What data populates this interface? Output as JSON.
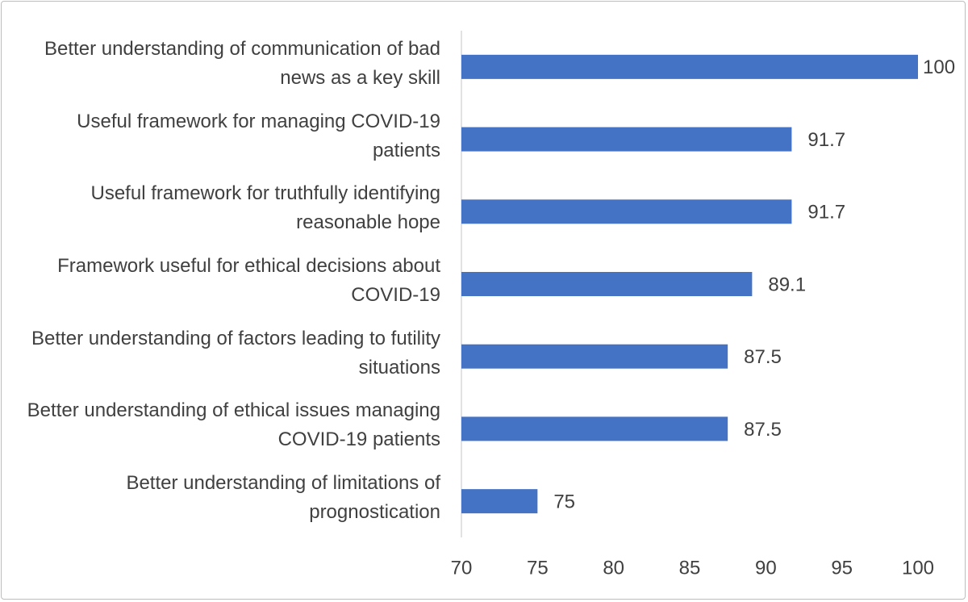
{
  "chart_data": {
    "type": "bar",
    "orientation": "horizontal",
    "categories": [
      "Better understanding of communication of bad news as a key skill",
      "Useful framework for managing COVID-19 patients",
      "Useful framework for truthfully identifying reasonable hope",
      "Framework useful for ethical decisions about COVID-19",
      "Better understanding of factors leading to futility situations",
      "Better understanding of ethical issues managing COVID-19 patients",
      "Better understanding of limitations of prognostication"
    ],
    "values": [
      100,
      91.7,
      91.7,
      89.1,
      87.5,
      87.5,
      75
    ],
    "color": "#4472c4",
    "xlim": [
      70,
      100
    ],
    "xticks": [
      70,
      75,
      80,
      85,
      90,
      95,
      100
    ],
    "grid": false
  }
}
